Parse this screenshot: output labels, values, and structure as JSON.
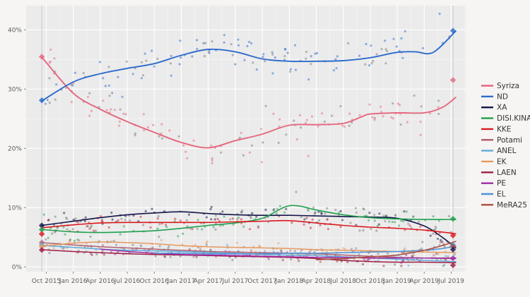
{
  "figure": {
    "bg": "#f6f5f3",
    "panel_bg": "#ebebeb",
    "grid_major_color": "#ffffff",
    "grid_minor_color": "#f4f4f4",
    "axis_text_color": "#5f5f5f",
    "tick_mark_color": "#8a8a8a",
    "legend_text_color": "#333333",
    "election_line_color": "#c9c9c9",
    "scatter_gray": "#7a7a7a"
  },
  "chart_data": {
    "type": "scatter",
    "title": "",
    "xlabel": "",
    "ylabel": "",
    "grid": true,
    "legend_position": "right",
    "x_tick_labels": [
      "Oct 2015",
      "Jan 2016",
      "Apr 2016",
      "Jul 2016",
      "Oct 2016",
      "Jan 2017",
      "Apr 2017",
      "Jul 2017",
      "Oct 2017",
      "Jan 2018",
      "Apr 2018",
      "Jul 2018",
      "Oct 2018",
      "Jan 2019",
      "Apr 2019",
      "Jul 2019"
    ],
    "x_tick_months": [
      0,
      3,
      6,
      9,
      12,
      15,
      18,
      21,
      24,
      27,
      30,
      33,
      36,
      39,
      42,
      45
    ],
    "y_tick_labels": [
      "0%",
      "10%",
      "20%",
      "30%",
      "40%"
    ],
    "y_tick_values": [
      0,
      10,
      20,
      30,
      40
    ],
    "ylim": [
      0,
      44
    ],
    "x_axis_unit": "months since Oct 2015",
    "election_markers": [
      {
        "name": "sep-2015-election",
        "month": -0.5,
        "results": {
          "Syriza": 35.46,
          "ND": 28.1,
          "XA": 6.99,
          "DISI.KINAL": 6.28,
          "KKE": 5.55,
          "Potami": 4.09,
          "ANEL": 3.69,
          "EK": 3.43,
          "LAEN": 2.86
        }
      },
      {
        "name": "jul-2019-election",
        "month": 45.2,
        "results": {
          "ND": 39.85,
          "Syriza": 31.53,
          "DISI.KINAL": 8.1,
          "KKE": 5.3,
          "EL": 3.7,
          "MeRA25": 3.44,
          "XA": 2.93,
          "PE": 1.47,
          "LAEN": 0.28
        }
      }
    ],
    "series": [
      {
        "name": "Syriza",
        "color": "#e4677e",
        "trend": [
          [
            -0.5,
            35.4
          ],
          [
            3,
            29.3
          ],
          [
            6,
            26.6
          ],
          [
            9,
            24.5
          ],
          [
            12,
            22.7
          ],
          [
            15,
            21.0
          ],
          [
            18,
            20.1
          ],
          [
            21,
            21.3
          ],
          [
            24,
            22.4
          ],
          [
            27,
            23.9
          ],
          [
            30,
            24.0
          ],
          [
            33,
            24.2
          ],
          [
            35,
            25.3
          ],
          [
            36,
            25.8
          ],
          [
            39,
            26.0
          ],
          [
            42,
            26.0
          ],
          [
            44,
            26.9
          ],
          [
            45.5,
            28.6
          ]
        ],
        "render": {
          "points": 115,
          "spread": 1.7,
          "line_width": 1.9
        }
      },
      {
        "name": "ND",
        "color": "#2e6bcc",
        "trend": [
          [
            -0.5,
            28.0
          ],
          [
            3,
            31.2
          ],
          [
            6,
            32.6
          ],
          [
            9,
            33.5
          ],
          [
            12,
            34.3
          ],
          [
            15,
            35.7
          ],
          [
            18,
            36.7
          ],
          [
            21,
            36.3
          ],
          [
            24,
            35.1
          ],
          [
            27,
            34.7
          ],
          [
            30,
            34.7
          ],
          [
            33,
            34.8
          ],
          [
            36,
            35.3
          ],
          [
            39,
            36.2
          ],
          [
            41,
            36.3
          ],
          [
            43,
            36.2
          ],
          [
            45.5,
            39.8
          ]
        ],
        "render": {
          "points": 115,
          "spread": 1.7,
          "line_width": 1.9
        }
      },
      {
        "name": "XA",
        "color": "#15154a",
        "trend": [
          [
            -0.5,
            7.0
          ],
          [
            3,
            7.7
          ],
          [
            6,
            8.3
          ],
          [
            9,
            8.8
          ],
          [
            12,
            9.1
          ],
          [
            15,
            9.3
          ],
          [
            18,
            9.0
          ],
          [
            21,
            8.8
          ],
          [
            24,
            8.7
          ],
          [
            27,
            8.7
          ],
          [
            30,
            8.6
          ],
          [
            33,
            8.5
          ],
          [
            36,
            8.4
          ],
          [
            39,
            8.2
          ],
          [
            42,
            6.9
          ],
          [
            44,
            5.0
          ],
          [
            45.5,
            3.2
          ]
        ],
        "render": {
          "points": 85,
          "spread": 0.9,
          "line_width": 1.6
        }
      },
      {
        "name": "DISI.KINAL",
        "color": "#1fa04e",
        "trend": [
          [
            -0.5,
            6.3
          ],
          [
            3,
            5.9
          ],
          [
            6,
            5.8
          ],
          [
            9,
            5.9
          ],
          [
            12,
            6.1
          ],
          [
            15,
            6.5
          ],
          [
            18,
            7.0
          ],
          [
            21,
            7.4
          ],
          [
            24,
            8.2
          ],
          [
            26.5,
            10.1
          ],
          [
            28,
            10.3
          ],
          [
            30,
            9.6
          ],
          [
            33,
            8.8
          ],
          [
            36,
            8.3
          ],
          [
            39,
            8.1
          ],
          [
            42,
            8.0
          ],
          [
            45.5,
            8.0
          ]
        ],
        "render": {
          "points": 85,
          "spread": 0.9,
          "line_width": 1.6
        }
      },
      {
        "name": "KKE",
        "color": "#da1a1f",
        "trend": [
          [
            -0.5,
            6.6
          ],
          [
            3,
            7.1
          ],
          [
            6,
            7.4
          ],
          [
            9,
            7.5
          ],
          [
            12,
            7.5
          ],
          [
            15,
            7.5
          ],
          [
            18,
            7.5
          ],
          [
            21,
            7.6
          ],
          [
            24,
            7.7
          ],
          [
            27,
            7.8
          ],
          [
            30,
            7.4
          ],
          [
            33,
            7.0
          ],
          [
            36,
            6.7
          ],
          [
            39,
            6.5
          ],
          [
            42,
            6.2
          ],
          [
            45.5,
            5.6
          ]
        ],
        "render": {
          "points": 85,
          "spread": 0.8,
          "line_width": 1.6
        }
      },
      {
        "name": "Potami",
        "color": "#b06072",
        "trend": [
          [
            -0.5,
            4.1
          ],
          [
            3,
            3.7
          ],
          [
            6,
            3.4
          ],
          [
            9,
            3.2
          ],
          [
            12,
            3.0
          ],
          [
            15,
            2.8
          ],
          [
            18,
            2.6
          ],
          [
            21,
            2.5
          ],
          [
            24,
            2.4
          ],
          [
            27,
            2.3
          ],
          [
            30,
            2.2
          ],
          [
            33,
            2.0
          ],
          [
            36,
            1.8
          ],
          [
            39,
            1.6
          ],
          [
            42,
            1.5
          ],
          [
            45.5,
            1.5
          ]
        ],
        "render": {
          "points": 70,
          "spread": 0.55,
          "line_width": 1.5
        }
      },
      {
        "name": "ANEL",
        "color": "#5fabd8",
        "trend": [
          [
            -0.5,
            3.6
          ],
          [
            3,
            3.3
          ],
          [
            6,
            3.0
          ],
          [
            9,
            2.8
          ],
          [
            12,
            2.7
          ],
          [
            15,
            2.6
          ],
          [
            18,
            2.4
          ],
          [
            21,
            2.3
          ],
          [
            24,
            2.1
          ],
          [
            27,
            2.0
          ],
          [
            30,
            1.9
          ],
          [
            33,
            1.7
          ],
          [
            36,
            1.5
          ],
          [
            39,
            1.3
          ],
          [
            42,
            1.1
          ],
          [
            45.5,
            0.9
          ]
        ],
        "render": {
          "points": 60,
          "spread": 0.5,
          "line_width": 1.5
        }
      },
      {
        "name": "EK",
        "color": "#e6995f",
        "trend": [
          [
            -0.5,
            3.5
          ],
          [
            3,
            4.0
          ],
          [
            6,
            4.2
          ],
          [
            9,
            4.1
          ],
          [
            12,
            3.9
          ],
          [
            15,
            3.6
          ],
          [
            18,
            3.4
          ],
          [
            21,
            3.3
          ],
          [
            24,
            3.2
          ],
          [
            27,
            3.1
          ],
          [
            30,
            2.9
          ],
          [
            33,
            2.8
          ],
          [
            36,
            2.7
          ],
          [
            39,
            2.6
          ],
          [
            42,
            2.5
          ],
          [
            45.5,
            2.4
          ]
        ],
        "render": {
          "points": 60,
          "spread": 0.5,
          "line_width": 1.5
        }
      },
      {
        "name": "LAEN",
        "color": "#9e1d45",
        "trend": [
          [
            -0.5,
            2.9
          ],
          [
            3,
            2.6
          ],
          [
            6,
            2.4
          ],
          [
            9,
            2.2
          ],
          [
            12,
            2.1
          ],
          [
            15,
            2.0
          ],
          [
            18,
            1.9
          ],
          [
            21,
            1.8
          ],
          [
            24,
            1.7
          ],
          [
            27,
            1.6
          ],
          [
            30,
            1.4
          ],
          [
            33,
            1.1
          ],
          [
            36,
            0.9
          ],
          [
            39,
            0.8
          ],
          [
            42,
            0.8
          ],
          [
            45.5,
            0.7
          ]
        ],
        "render": {
          "points": 50,
          "spread": 0.45,
          "line_width": 1.5
        }
      },
      {
        "name": "PE",
        "color": "#a22aa6",
        "trend": [
          [
            6,
            3.0
          ],
          [
            9,
            2.6
          ],
          [
            12,
            2.3
          ],
          [
            15,
            2.1
          ],
          [
            18,
            2.0
          ],
          [
            21,
            1.9
          ],
          [
            24,
            1.8
          ],
          [
            27,
            1.7
          ],
          [
            30,
            1.6
          ],
          [
            33,
            1.6
          ],
          [
            36,
            1.5
          ],
          [
            39,
            1.5
          ],
          [
            42,
            1.5
          ],
          [
            45.5,
            1.4
          ]
        ],
        "render": {
          "points": 45,
          "spread": 0.45,
          "line_width": 1.5
        }
      },
      {
        "name": "EL",
        "color": "#4f93d8",
        "trend": [
          [
            12,
            2.3
          ],
          [
            15,
            2.3
          ],
          [
            18,
            2.2
          ],
          [
            21,
            2.2
          ],
          [
            24,
            2.2
          ],
          [
            27,
            2.3
          ],
          [
            30,
            2.3
          ],
          [
            33,
            2.4
          ],
          [
            36,
            2.5
          ],
          [
            39,
            2.6
          ],
          [
            42,
            2.8
          ],
          [
            44,
            3.1
          ],
          [
            45.5,
            3.5
          ]
        ],
        "render": {
          "points": 42,
          "spread": 0.5,
          "line_width": 1.5
        }
      },
      {
        "name": "MeRA25",
        "color": "#ad4b38",
        "trend": [
          [
            30,
            1.2
          ],
          [
            33,
            1.4
          ],
          [
            36,
            1.7
          ],
          [
            39,
            2.0
          ],
          [
            42,
            2.8
          ],
          [
            44,
            3.6
          ],
          [
            45.5,
            4.3
          ]
        ],
        "render": {
          "points": 25,
          "spread": 0.5,
          "line_width": 1.5
        }
      }
    ]
  }
}
